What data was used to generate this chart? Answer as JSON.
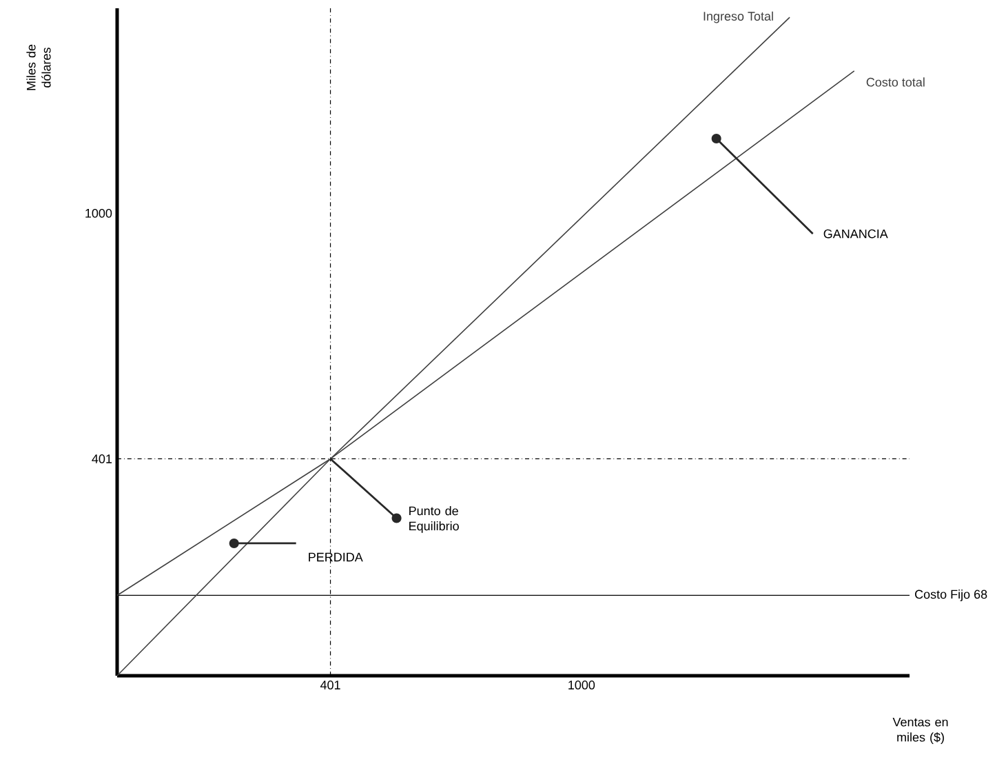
{
  "chart_data": {
    "type": "line",
    "xlabel": "Ventas en miles ($)",
    "ylabel": "Miles de dólares",
    "xlim": [
      -108,
      1783
    ],
    "ylim": [
      -128,
      1500
    ],
    "xticks": [
      401,
      1000
    ],
    "yticks": [
      401,
      1000
    ],
    "series": [
      {
        "name": "Ingreso Total",
        "color": "#404040",
        "x": [
          -108,
          401,
          1497
        ],
        "values": [
          -128,
          401,
          1478
        ]
      },
      {
        "name": "Costo total",
        "color": "#404040",
        "x": [
          -108,
          401,
          1651
        ],
        "values": [
          68,
          401,
          1347
        ]
      }
    ],
    "ref_lines": [
      {
        "axis": "y",
        "value": 68,
        "label": "Costo Fijo 68",
        "color": "#000000",
        "line_style": "solid"
      },
      {
        "axis": "x",
        "value": 401,
        "color": "#000000",
        "line_style": "dashed"
      },
      {
        "axis": "y",
        "value": 401,
        "color": "#000000",
        "line_style": "dashed"
      }
    ],
    "annotations": [
      {
        "text": "PERDIDA",
        "x": 171,
        "y": 195
      },
      {
        "text": "Punto de Equilibrio",
        "x": 401,
        "y": 401
      },
      {
        "text": "GANANCIA",
        "x": 1322,
        "y": 1182
      }
    ]
  }
}
